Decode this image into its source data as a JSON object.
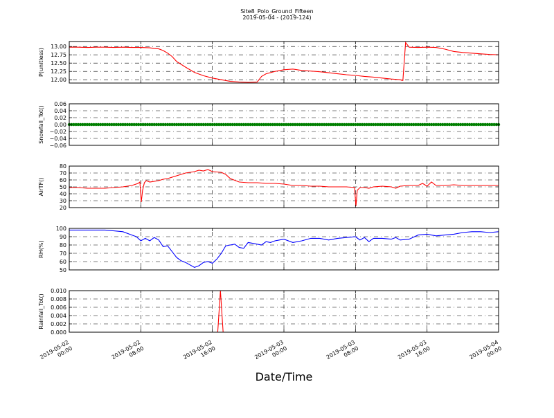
{
  "title": "Site8_Polo_Ground_Fifteen",
  "subtitle": "2019-05-04 - (2019-124)",
  "xlabel": "Date/Time",
  "x_ticks": [
    {
      "t": 0,
      "line1": "2019-05-02",
      "line2": "00:00"
    },
    {
      "t": 8,
      "line1": "2019-05-02",
      "line2": "08:00"
    },
    {
      "t": 16,
      "line1": "2019-05-02",
      "line2": "16:00"
    },
    {
      "t": 24,
      "line1": "2019-05-03",
      "line2": "00:00"
    },
    {
      "t": 32,
      "line1": "2019-05-03",
      "line2": "08:00"
    },
    {
      "t": 40,
      "line1": "2019-05-03",
      "line2": "16:00"
    },
    {
      "t": 48,
      "line1": "2019-05-04",
      "line2": "00:00"
    }
  ],
  "chart_data": [
    {
      "type": "line",
      "ylabel": "P(unitless)",
      "ylim": [
        11.9,
        13.15
      ],
      "yticks": [
        "12.00",
        "12.25",
        "12.50",
        "12.75",
        "13.00"
      ],
      "ytick_values": [
        12.0,
        12.25,
        12.5,
        12.75,
        13.0
      ],
      "color": "#ff0000",
      "grid": true,
      "x": [
        0,
        1,
        2,
        3,
        4,
        5,
        6,
        7,
        8,
        9,
        9.5,
        10,
        10.5,
        11,
        11.5,
        12,
        13,
        14,
        15,
        16,
        17,
        18,
        19,
        20,
        21,
        21.5,
        22,
        23,
        24,
        25,
        26,
        27,
        28,
        29,
        30,
        31,
        32,
        33,
        34,
        35,
        36,
        37,
        37.2,
        37.3,
        37.6,
        38,
        39,
        40,
        41,
        42,
        43,
        44,
        45,
        46,
        47,
        48
      ],
      "y": [
        12.98,
        12.98,
        12.97,
        12.98,
        12.98,
        12.97,
        12.98,
        12.97,
        12.97,
        12.96,
        12.94,
        12.93,
        12.88,
        12.8,
        12.7,
        12.55,
        12.38,
        12.22,
        12.12,
        12.05,
        12.0,
        11.95,
        11.93,
        11.92,
        11.93,
        12.1,
        12.18,
        12.25,
        12.3,
        12.32,
        12.28,
        12.26,
        12.24,
        12.21,
        12.18,
        12.15,
        12.13,
        12.1,
        12.08,
        12.05,
        12.02,
        12.0,
        11.98,
        11.98,
        13.12,
        12.98,
        12.97,
        12.98,
        12.97,
        12.92,
        12.85,
        12.82,
        12.8,
        12.78,
        12.76,
        12.75
      ]
    },
    {
      "type": "scatter",
      "ylabel": "Snowfall_Tot()",
      "ylim": [
        -0.06,
        0.06
      ],
      "yticks": [
        "0.06",
        "0.04",
        "0.02",
        "0.00",
        "−0.02",
        "−0.04",
        "−0.06"
      ],
      "ytick_values": [
        0.06,
        0.04,
        0.02,
        0.0,
        -0.02,
        -0.04,
        -0.06
      ],
      "color": "#007f00",
      "grid": true,
      "x_start": 0,
      "x_end": 48,
      "x_step": 0.25,
      "value": 0.0
    },
    {
      "type": "line",
      "ylabel": "AirTF()",
      "ylim": [
        20,
        80
      ],
      "yticks": [
        "80",
        "70",
        "60",
        "50",
        "40",
        "30",
        "20"
      ],
      "ytick_values": [
        80,
        70,
        60,
        50,
        40,
        30,
        20
      ],
      "color": "#ff0000",
      "grid": true,
      "x": [
        0,
        1,
        2,
        3,
        4,
        5,
        6,
        7,
        7.7,
        7.9,
        8.05,
        8.2,
        8.4,
        8.6,
        9,
        10,
        10.5,
        11,
        12,
        13,
        14,
        14.5,
        15,
        15.5,
        16,
        17,
        17.5,
        18,
        19,
        20,
        21,
        22,
        23,
        24,
        25,
        26,
        27,
        28,
        29,
        30,
        31,
        31.9,
        32.05,
        32.2,
        32.5,
        33,
        33.5,
        34,
        35,
        36,
        36.5,
        37,
        38,
        39,
        39.5,
        40,
        40.5,
        41,
        42,
        43,
        44,
        45,
        46,
        47,
        48
      ],
      "y": [
        49,
        49,
        48,
        48,
        48,
        49,
        50,
        52,
        55,
        57,
        28,
        45,
        56,
        59,
        57,
        59,
        61,
        62,
        66,
        70,
        72,
        74,
        73,
        75,
        72,
        71,
        68,
        62,
        57,
        56,
        56,
        55,
        55,
        54,
        52,
        52,
        51,
        51,
        50,
        50,
        50,
        49,
        22,
        45,
        49,
        49,
        48,
        50,
        51,
        50,
        48,
        51,
        52,
        52,
        55,
        51,
        57,
        52,
        52,
        53,
        52,
        52,
        52,
        52,
        52
      ]
    },
    {
      "type": "line",
      "ylabel": "RH(%)",
      "ylim": [
        50,
        100
      ],
      "yticks": [
        "100",
        "90",
        "80",
        "70",
        "60",
        "50"
      ],
      "ytick_values": [
        100,
        90,
        80,
        70,
        60,
        50
      ],
      "color": "#0000ff",
      "grid": true,
      "x": [
        0,
        1,
        2,
        3,
        4,
        5,
        6,
        7,
        7.5,
        8,
        8.5,
        9,
        9.5,
        10,
        10.5,
        11,
        11.5,
        12,
        12.5,
        13,
        13.5,
        14,
        14.5,
        15,
        15.5,
        16,
        16.5,
        17,
        17.5,
        18,
        18.5,
        19,
        19.5,
        20,
        20.5,
        21,
        21.5,
        22,
        22.5,
        23,
        23.5,
        24,
        25,
        26,
        27,
        28,
        29,
        30,
        31,
        32,
        32.5,
        33,
        33.5,
        34,
        35,
        36,
        36.5,
        37,
        38,
        39,
        40,
        41,
        42,
        43,
        44,
        45,
        46,
        47,
        48
      ],
      "y": [
        98,
        98,
        98,
        98,
        98,
        97,
        96,
        92,
        90,
        85,
        88,
        85,
        89,
        86,
        78,
        79,
        72,
        65,
        61,
        59,
        56,
        53,
        55,
        59,
        60,
        58,
        63,
        70,
        79,
        80,
        81,
        77,
        76,
        83,
        82,
        81,
        80,
        84,
        83,
        85,
        86,
        87,
        83,
        85,
        88,
        88,
        86,
        88,
        89,
        90,
        86,
        89,
        84,
        88,
        88,
        87,
        89,
        86,
        87,
        92,
        93,
        91,
        92,
        93,
        95,
        96,
        96,
        95,
        96
      ]
    },
    {
      "type": "line",
      "ylabel": "Rainfall_Tot()",
      "ylim": [
        0,
        0.01
      ],
      "yticks": [
        "0.010",
        "0.008",
        "0.006",
        "0.004",
        "0.002",
        "0.000"
      ],
      "ytick_values": [
        0.01,
        0.008,
        0.006,
        0.004,
        0.002,
        0.0
      ],
      "color": "#ff0000",
      "grid": true,
      "x": [
        0,
        16.6,
        16.9,
        17.2,
        48
      ],
      "y": [
        0,
        0,
        0.01,
        0,
        0
      ]
    }
  ]
}
